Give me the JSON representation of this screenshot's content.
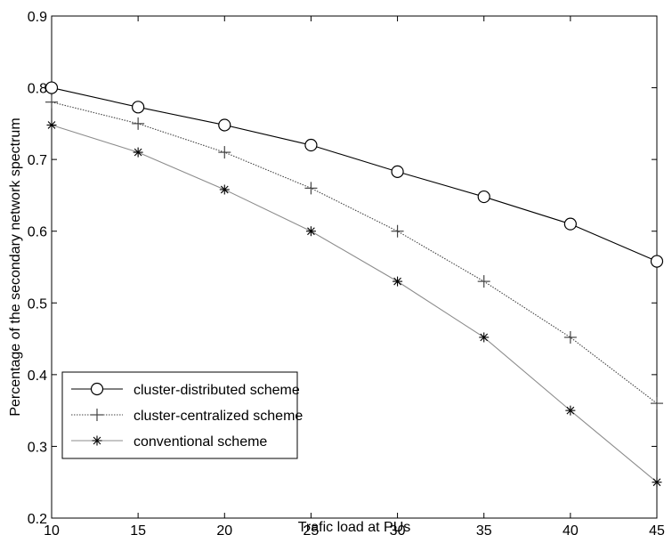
{
  "chart_data": {
    "type": "line",
    "title": "",
    "xlabel": "Trafic load at PUs",
    "ylabel": "Percentage of the secondary network spectrum",
    "xlim": [
      10,
      45
    ],
    "ylim": [
      0.2,
      0.9
    ],
    "xticks": [
      "10",
      "15",
      "20",
      "25",
      "30",
      "35",
      "40",
      "45"
    ],
    "yticks": [
      "0.2",
      "0.3",
      "0.4",
      "0.5",
      "0.6",
      "0.7",
      "0.8",
      "0.9"
    ],
    "grid": false,
    "legend_position": "bottom-left",
    "x": [
      10,
      15,
      20,
      25,
      30,
      35,
      40,
      45
    ],
    "series": [
      {
        "name": "cluster-distributed scheme",
        "values": [
          0.8,
          0.773,
          0.748,
          0.72,
          0.683,
          0.648,
          0.61,
          0.558
        ],
        "marker": "circle",
        "color": "#000000",
        "line": "solid"
      },
      {
        "name": "cluster-centralized scheme",
        "values": [
          0.78,
          0.75,
          0.71,
          0.66,
          0.6,
          0.53,
          0.452,
          0.36
        ],
        "marker": "plus",
        "color": "#444444",
        "line": "dotted"
      },
      {
        "name": "conventional scheme",
        "values": [
          0.748,
          0.71,
          0.658,
          0.6,
          0.53,
          0.452,
          0.35,
          0.25
        ],
        "marker": "star",
        "color": "#8c8c8c",
        "line": "solid"
      }
    ]
  }
}
